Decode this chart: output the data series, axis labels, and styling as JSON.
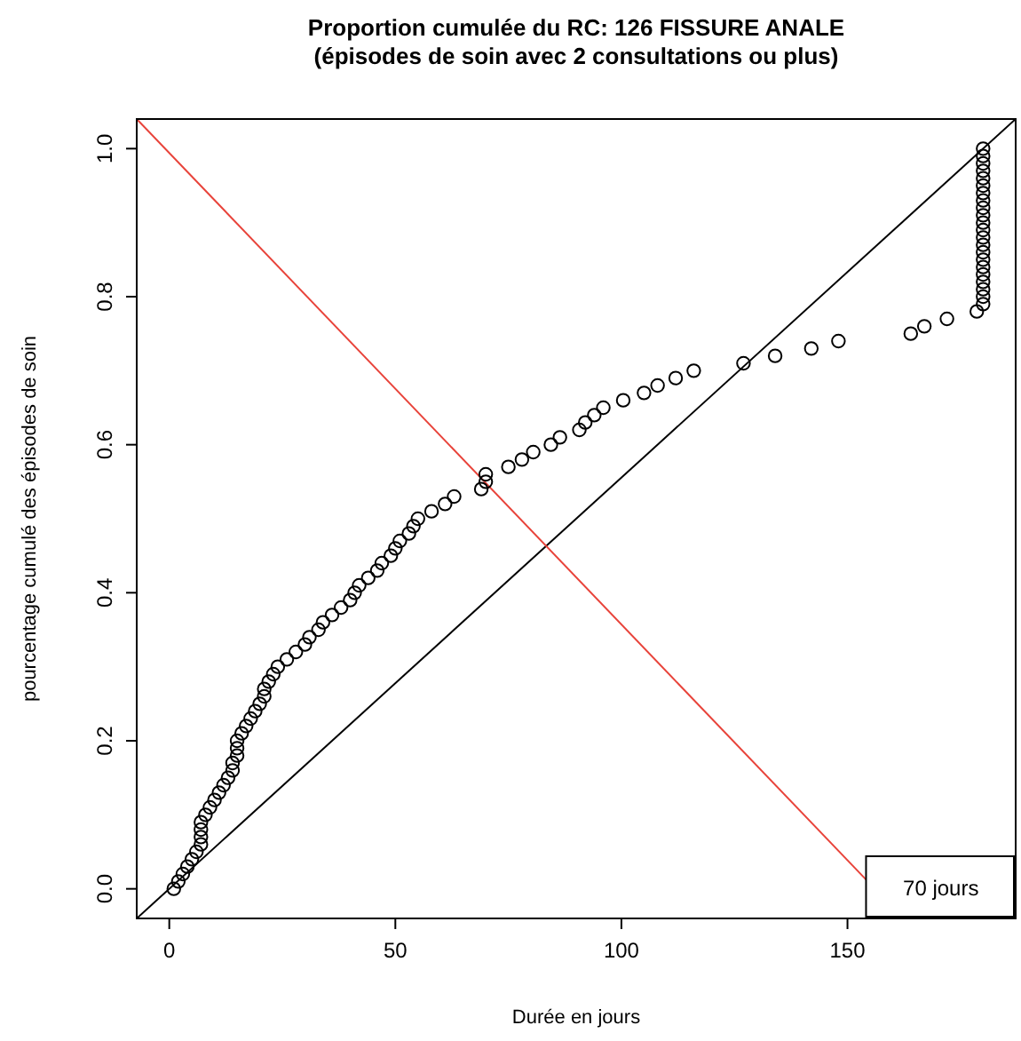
{
  "chart_data": {
    "type": "scatter",
    "title": "Proportion cumulée du RC: 126 FISSURE ANALE",
    "subtitle": "(épisodes de soin avec 2 consultations ou plus)",
    "xlabel": "Durée en jours",
    "ylabel": "pourcentage cumulé des épisodes de soin",
    "annotations": [
      "70 jours"
    ],
    "xlim": [
      -7.2,
      187.2
    ],
    "ylim": [
      -0.04,
      1.04
    ],
    "xticks": [
      0,
      50,
      100,
      150
    ],
    "yticks": [
      {
        "value": 0,
        "label": "0.0"
      },
      {
        "value": 0.2,
        "label": "0.2"
      },
      {
        "value": 0.4,
        "label": "0.4"
      },
      {
        "value": 0.6,
        "label": "0.6"
      },
      {
        "value": 0.8,
        "label": "0.8"
      },
      {
        "value": 1,
        "label": "1.0"
      }
    ],
    "grid": false,
    "series": [
      {
        "type": "line",
        "color": "#000000",
        "line_style": "solid",
        "marker": "none",
        "x": [
          -7.2,
          187.2
        ],
        "values": [
          -0.04,
          1.04
        ]
      },
      {
        "type": "line",
        "color": "#e8433a",
        "line_style": "solid",
        "marker": "none",
        "x": [
          -7.2,
          154.5
        ],
        "values": [
          1.04,
          0.01
        ]
      },
      {
        "color": "#000000",
        "marker": "circle",
        "x": [
          1,
          2,
          3,
          4,
          5,
          6,
          7,
          7,
          7,
          7,
          8,
          9,
          10,
          11,
          12,
          13,
          14,
          14,
          15,
          15,
          15,
          16,
          17,
          18,
          19,
          20,
          21,
          21,
          22,
          23,
          24,
          26,
          28,
          30,
          31,
          33,
          34,
          36,
          38,
          40,
          41,
          42,
          44,
          46,
          47,
          49,
          50,
          51,
          53,
          54,
          55,
          58,
          61,
          63,
          69,
          70,
          70,
          75,
          78,
          80.5,
          84.4,
          86.4,
          90.7,
          92,
          94,
          96,
          100.4,
          105,
          108,
          112,
          116,
          127,
          134,
          142,
          148,
          164,
          167,
          172,
          178.6,
          180,
          180,
          180,
          180,
          180,
          180,
          180,
          180,
          180,
          180,
          180,
          180,
          180,
          180,
          180,
          180,
          180,
          180,
          180,
          180,
          180,
          180
        ],
        "values": [
          0,
          0.01,
          0.02,
          0.03,
          0.04,
          0.05,
          0.06,
          0.07,
          0.08,
          0.09,
          0.1,
          0.11,
          0.12,
          0.13,
          0.14,
          0.15,
          0.16,
          0.17,
          0.18,
          0.19,
          0.2,
          0.21,
          0.22,
          0.23,
          0.24,
          0.25,
          0.26,
          0.27,
          0.28,
          0.29,
          0.3,
          0.31,
          0.32,
          0.33,
          0.34,
          0.35,
          0.36,
          0.37,
          0.38,
          0.39,
          0.4,
          0.41,
          0.42,
          0.43,
          0.44,
          0.45,
          0.46,
          0.47,
          0.48,
          0.49,
          0.5,
          0.51,
          0.52,
          0.53,
          0.54,
          0.55,
          0.56,
          0.57,
          0.58,
          0.59,
          0.6,
          0.61,
          0.62,
          0.63,
          0.64,
          0.65,
          0.66,
          0.67,
          0.68,
          0.69,
          0.7,
          0.71,
          0.72,
          0.73,
          0.74,
          0.75,
          0.76,
          0.77,
          0.78,
          0.79,
          0.8,
          0.81,
          0.82,
          0.83,
          0.84,
          0.85,
          0.86,
          0.87,
          0.88,
          0.89,
          0.9,
          0.91,
          0.92,
          0.93,
          0.94,
          0.95,
          0.96,
          0.97,
          0.98,
          0.99,
          1.0
        ]
      }
    ]
  }
}
